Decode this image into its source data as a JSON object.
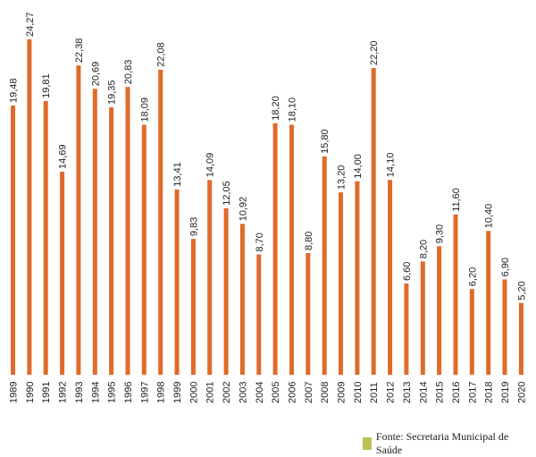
{
  "chart_data": {
    "type": "bar",
    "title": "",
    "xlabel": "",
    "ylabel": "",
    "ylim": [
      0,
      25
    ],
    "grid": false,
    "categories": [
      "1989",
      "1990",
      "1991",
      "1992",
      "1993",
      "1994",
      "1995",
      "1996",
      "1997",
      "1998",
      "1999",
      "2000",
      "2001",
      "2002",
      "2003",
      "2004",
      "2005",
      "2006",
      "2007",
      "2008",
      "2009",
      "2010",
      "2011",
      "2012",
      "2013",
      "2014",
      "2015",
      "2016",
      "2017",
      "2018",
      "2019",
      "2020"
    ],
    "values": [
      19.48,
      24.27,
      19.81,
      14.69,
      22.38,
      20.69,
      19.35,
      20.83,
      18.09,
      22.08,
      13.41,
      9.83,
      14.09,
      12.05,
      10.92,
      8.7,
      18.2,
      18.1,
      8.8,
      15.8,
      13.2,
      14.0,
      22.2,
      14.1,
      6.6,
      8.2,
      9.3,
      11.6,
      6.2,
      10.4,
      6.9,
      5.2
    ],
    "labels": [
      "19,48",
      "24,27",
      "19,81",
      "14,69",
      "22,38",
      "20,69",
      "19,35",
      "20,83",
      "18,09",
      "22,08",
      "13,41",
      "9,83",
      "14,09",
      "12,05",
      "10,92",
      "8,70",
      "18,20",
      "18,10",
      "8,80",
      "15,80",
      "13,20",
      "14,00",
      "22,20",
      "14,10",
      "6,60",
      "8,20",
      "9,30",
      "11,60",
      "6,20",
      "10,40",
      "6,90",
      "5,20"
    ],
    "bar_color": "#e06a2a"
  },
  "legend": {
    "source_text": "Fonte: Secretaria Municipal de Saúde",
    "swatch_color": "#bfbf5a"
  }
}
